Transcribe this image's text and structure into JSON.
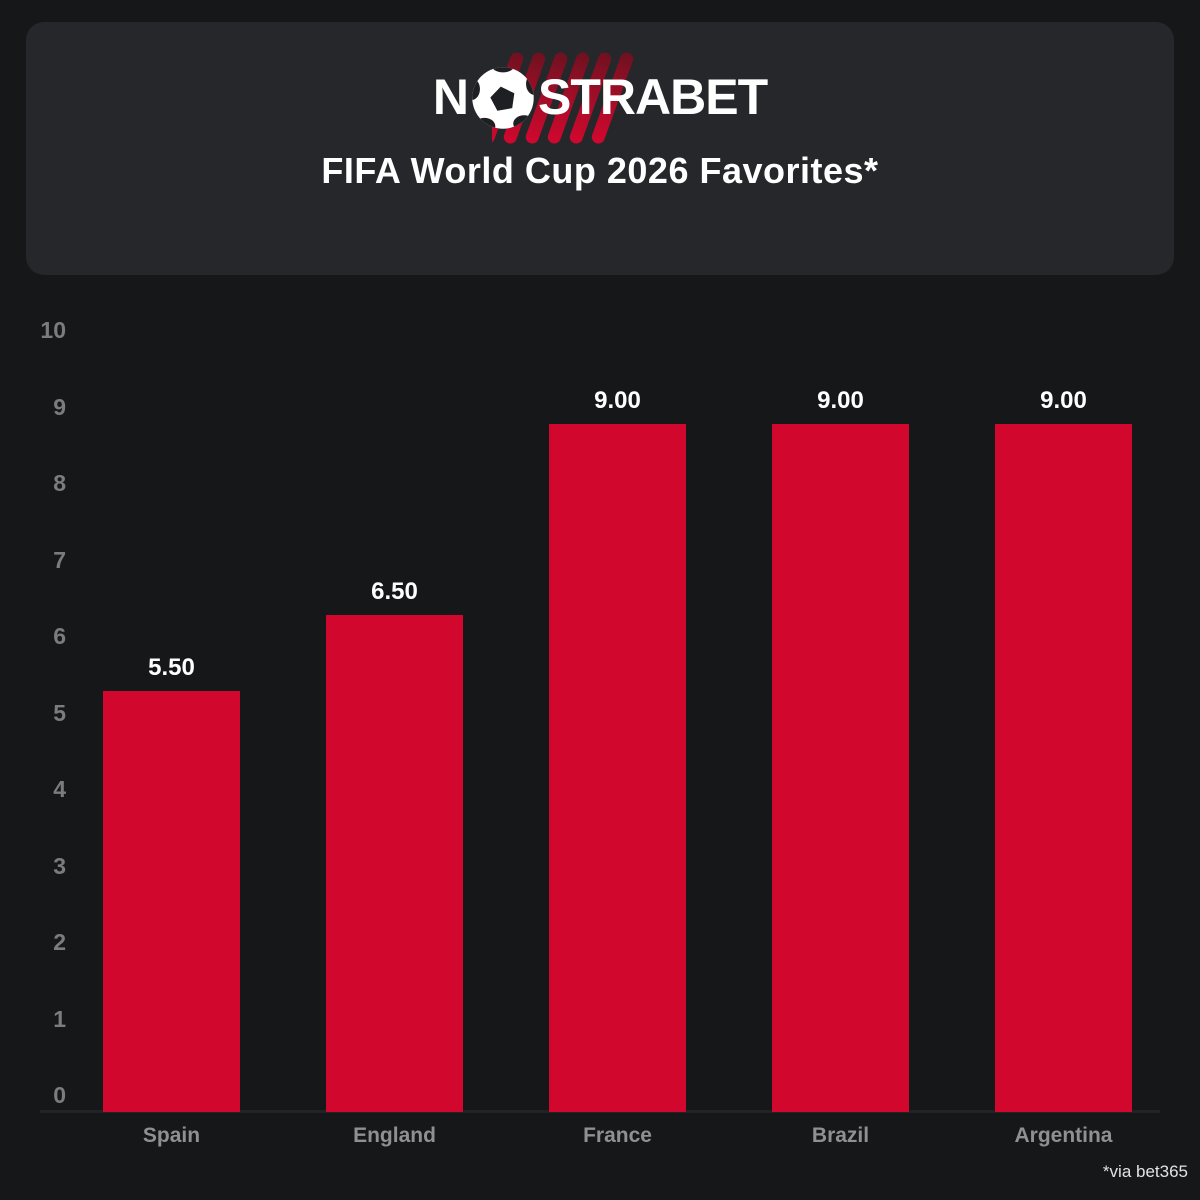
{
  "header": {
    "logo": {
      "text_before_ball": "N",
      "text_after_ball": "STRABET"
    },
    "title": "FIFA World Cup 2026 Favorites*"
  },
  "chart_data": {
    "type": "bar",
    "title": "FIFA World Cup 2026 Favorites*",
    "categories": [
      "Spain",
      "England",
      "France",
      "Brazil",
      "Argentina"
    ],
    "values": [
      5.5,
      6.5,
      9.0,
      9.0,
      9.0
    ],
    "value_labels": [
      "5.50",
      "6.50",
      "9.00",
      "9.00",
      "9.00"
    ],
    "xlabel": "",
    "ylabel": "",
    "ylim": [
      0,
      10
    ],
    "ytick_step": 1,
    "yticks": [
      0,
      1,
      2,
      3,
      4,
      5,
      6,
      7,
      8,
      9,
      10
    ],
    "grid": false,
    "legend": false,
    "bar_color": "#d2072e"
  },
  "footer": {
    "source_note": "*via bet365"
  },
  "colors": {
    "page_bg": "#161719",
    "card_bg": "#25272b",
    "bar_red": "#d2072e",
    "stripe_top": "#6e1120",
    "stripe_bottom": "#d2072e",
    "tick_text": "#7b7c7f",
    "category_text": "#8f9093",
    "value_text": "#ffffff",
    "title_text": "#ffffff",
    "note_text": "#e3e3e3",
    "ball_patch": "#1d1f23"
  }
}
